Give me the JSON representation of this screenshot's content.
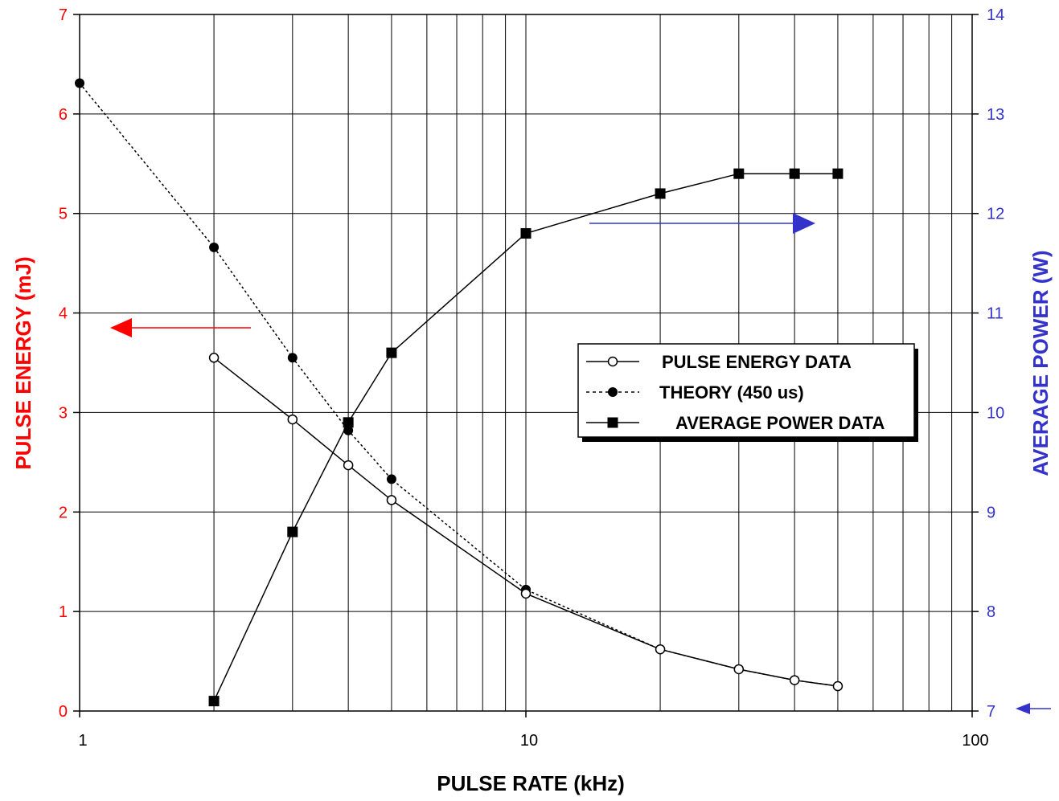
{
  "chart_data": {
    "type": "line",
    "xscale": "log",
    "xlim": [
      1,
      100
    ],
    "xticks": [
      1,
      10,
      100
    ],
    "xlabel": "PULSE RATE (kHz)",
    "ylabel_left": "PULSE ENERGY (mJ)",
    "ylim_left": [
      0,
      7
    ],
    "yticks_left": [
      0,
      1,
      2,
      3,
      4,
      5,
      6,
      7
    ],
    "ylabel_right": "AVERAGE POWER (W)",
    "ylim_right": [
      7,
      14
    ],
    "yticks_right": [
      7,
      8,
      9,
      10,
      11,
      12,
      13,
      14
    ],
    "grid": true,
    "legend_position": "center-right",
    "colors": {
      "left_axis": "#ff0000",
      "right_axis": "#3333cc",
      "series": "#000000"
    },
    "series": [
      {
        "name": "PULSE ENERGY DATA",
        "axis": "left",
        "marker": "open-circle",
        "line": "solid",
        "x": [
          2,
          3,
          4,
          5,
          10,
          20,
          30,
          40,
          50
        ],
        "y": [
          3.55,
          2.93,
          2.47,
          2.12,
          1.18,
          0.62,
          0.42,
          0.31,
          0.25
        ]
      },
      {
        "name": "THEORY (450 us)",
        "axis": "left",
        "marker": "filled-circle",
        "line": "dotted",
        "x": [
          1,
          2,
          3,
          4,
          5,
          10,
          20,
          30,
          40,
          50
        ],
        "y": [
          6.31,
          4.66,
          3.55,
          2.82,
          2.33,
          1.22,
          0.62,
          0.42,
          0.31,
          0.25
        ]
      },
      {
        "name": "AVERAGE POWER DATA",
        "axis": "right",
        "marker": "filled-square",
        "line": "solid",
        "x": [
          2,
          3,
          4,
          5,
          10,
          20,
          30,
          40,
          50
        ],
        "y": [
          7.1,
          8.8,
          9.9,
          10.6,
          11.8,
          12.2,
          12.4,
          12.4,
          12.4
        ]
      }
    ],
    "annotations": [
      {
        "type": "arrow",
        "direction": "left",
        "color": "#ff0000",
        "meaning": "points to left axis"
      },
      {
        "type": "arrow",
        "direction": "right",
        "color": "#3333cc",
        "meaning": "points to right axis"
      },
      {
        "type": "arrow",
        "direction": "left",
        "color": "#3333cc",
        "meaning": "marks right axis origin"
      }
    ]
  }
}
